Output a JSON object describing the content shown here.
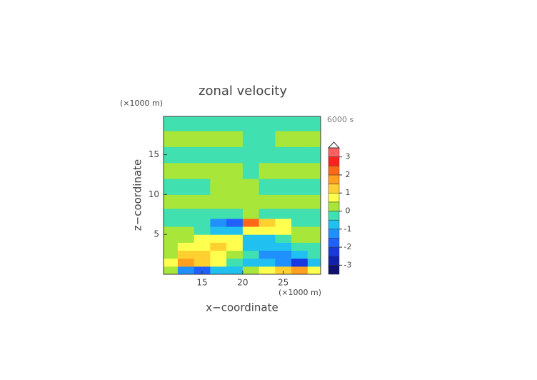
{
  "chart_data": {
    "type": "contour",
    "title": "zonal velocity",
    "time_label": "6000 s",
    "x_label": "x−coordinate",
    "y_label": "z−coordinate",
    "x_unit": "(×1000 m)",
    "y_unit": "(×1000 m)",
    "xlim": [
      10.25,
      29.6
    ],
    "ylim": [
      0,
      19.8
    ],
    "xticks": [
      15,
      20,
      25
    ],
    "yticks": [
      5,
      10,
      15
    ],
    "x": [
      11,
      13,
      15,
      17,
      19,
      21,
      23,
      25,
      27,
      29
    ],
    "z": [
      0.5,
      1.5,
      2.5,
      3.5,
      4.5,
      5.5,
      6.5,
      7.5,
      9,
      11,
      13,
      15,
      17,
      19
    ],
    "values": [
      [
        0.3,
        -1.2,
        -1.6,
        -0.7,
        -0.6,
        0.4,
        0.7,
        1.2,
        1.8,
        0.8
      ],
      [
        0.6,
        1.5,
        1.3,
        0.6,
        -0.3,
        -0.6,
        -0.8,
        -1.5,
        -2.2,
        -0.9
      ],
      [
        0.3,
        1.0,
        1.2,
        0.8,
        0.3,
        -0.3,
        -1.2,
        -1.4,
        -1.0,
        -0.3
      ],
      [
        0.2,
        0.6,
        0.9,
        1.2,
        0.6,
        -0.6,
        -0.9,
        -0.7,
        -0.3,
        -0.2
      ],
      [
        0.1,
        0.3,
        0.6,
        0.8,
        0.7,
        -0.8,
        -0.7,
        -0.3,
        0.1,
        0.1
      ],
      [
        0.2,
        0.2,
        -0.3,
        -0.8,
        -0.8,
        0.8,
        0.9,
        0.5,
        0.2,
        0.1
      ],
      [
        -0.2,
        -0.2,
        -0.5,
        -1.2,
        -2.0,
        2.3,
        1.3,
        0.7,
        -0.2,
        -0.2
      ],
      [
        -0.2,
        -0.3,
        -0.2,
        -0.2,
        -0.4,
        0.4,
        -0.2,
        -0.3,
        -0.3,
        -0.2
      ],
      [
        0.2,
        0.2,
        0.2,
        0.2,
        0.2,
        0.1,
        0.2,
        0.2,
        0.2,
        0.2
      ],
      [
        -0.2,
        -0.2,
        -0.2,
        0.2,
        0.3,
        0.3,
        -0.2,
        -0.2,
        -0.2,
        -0.2
      ],
      [
        0.2,
        0.2,
        0.2,
        0.2,
        0.2,
        -0.2,
        0.2,
        0.2,
        0.2,
        0.2
      ],
      [
        -0.2,
        -0.2,
        -0.2,
        -0.2,
        -0.2,
        -0.2,
        -0.2,
        -0.2,
        -0.2,
        -0.2
      ],
      [
        0.2,
        0.2,
        0.2,
        0.2,
        0.2,
        -0.2,
        -0.2,
        0.2,
        0.2,
        0.2
      ],
      [
        -0.2,
        -0.2,
        -0.2,
        -0.2,
        -0.2,
        -0.2,
        -0.2,
        -0.2,
        -0.2,
        -0.2
      ]
    ],
    "levels": [
      -3.5,
      -3,
      -2.5,
      -2,
      -1.5,
      -1,
      -0.5,
      0,
      0.5,
      1,
      1.5,
      2,
      2.5,
      3,
      3.5
    ],
    "colors": [
      "#10106e",
      "#1020a8",
      "#1838e0",
      "#2060ff",
      "#2090ff",
      "#20c0f0",
      "#40e0b0",
      "#a8e63a",
      "#ffff50",
      "#ffd030",
      "#ffa020",
      "#ff6818",
      "#ff2020",
      "#ff6060",
      "#ffb0b0"
    ],
    "colorbar_ticks": [
      -3,
      -2,
      -1,
      0,
      1,
      2,
      3
    ]
  }
}
